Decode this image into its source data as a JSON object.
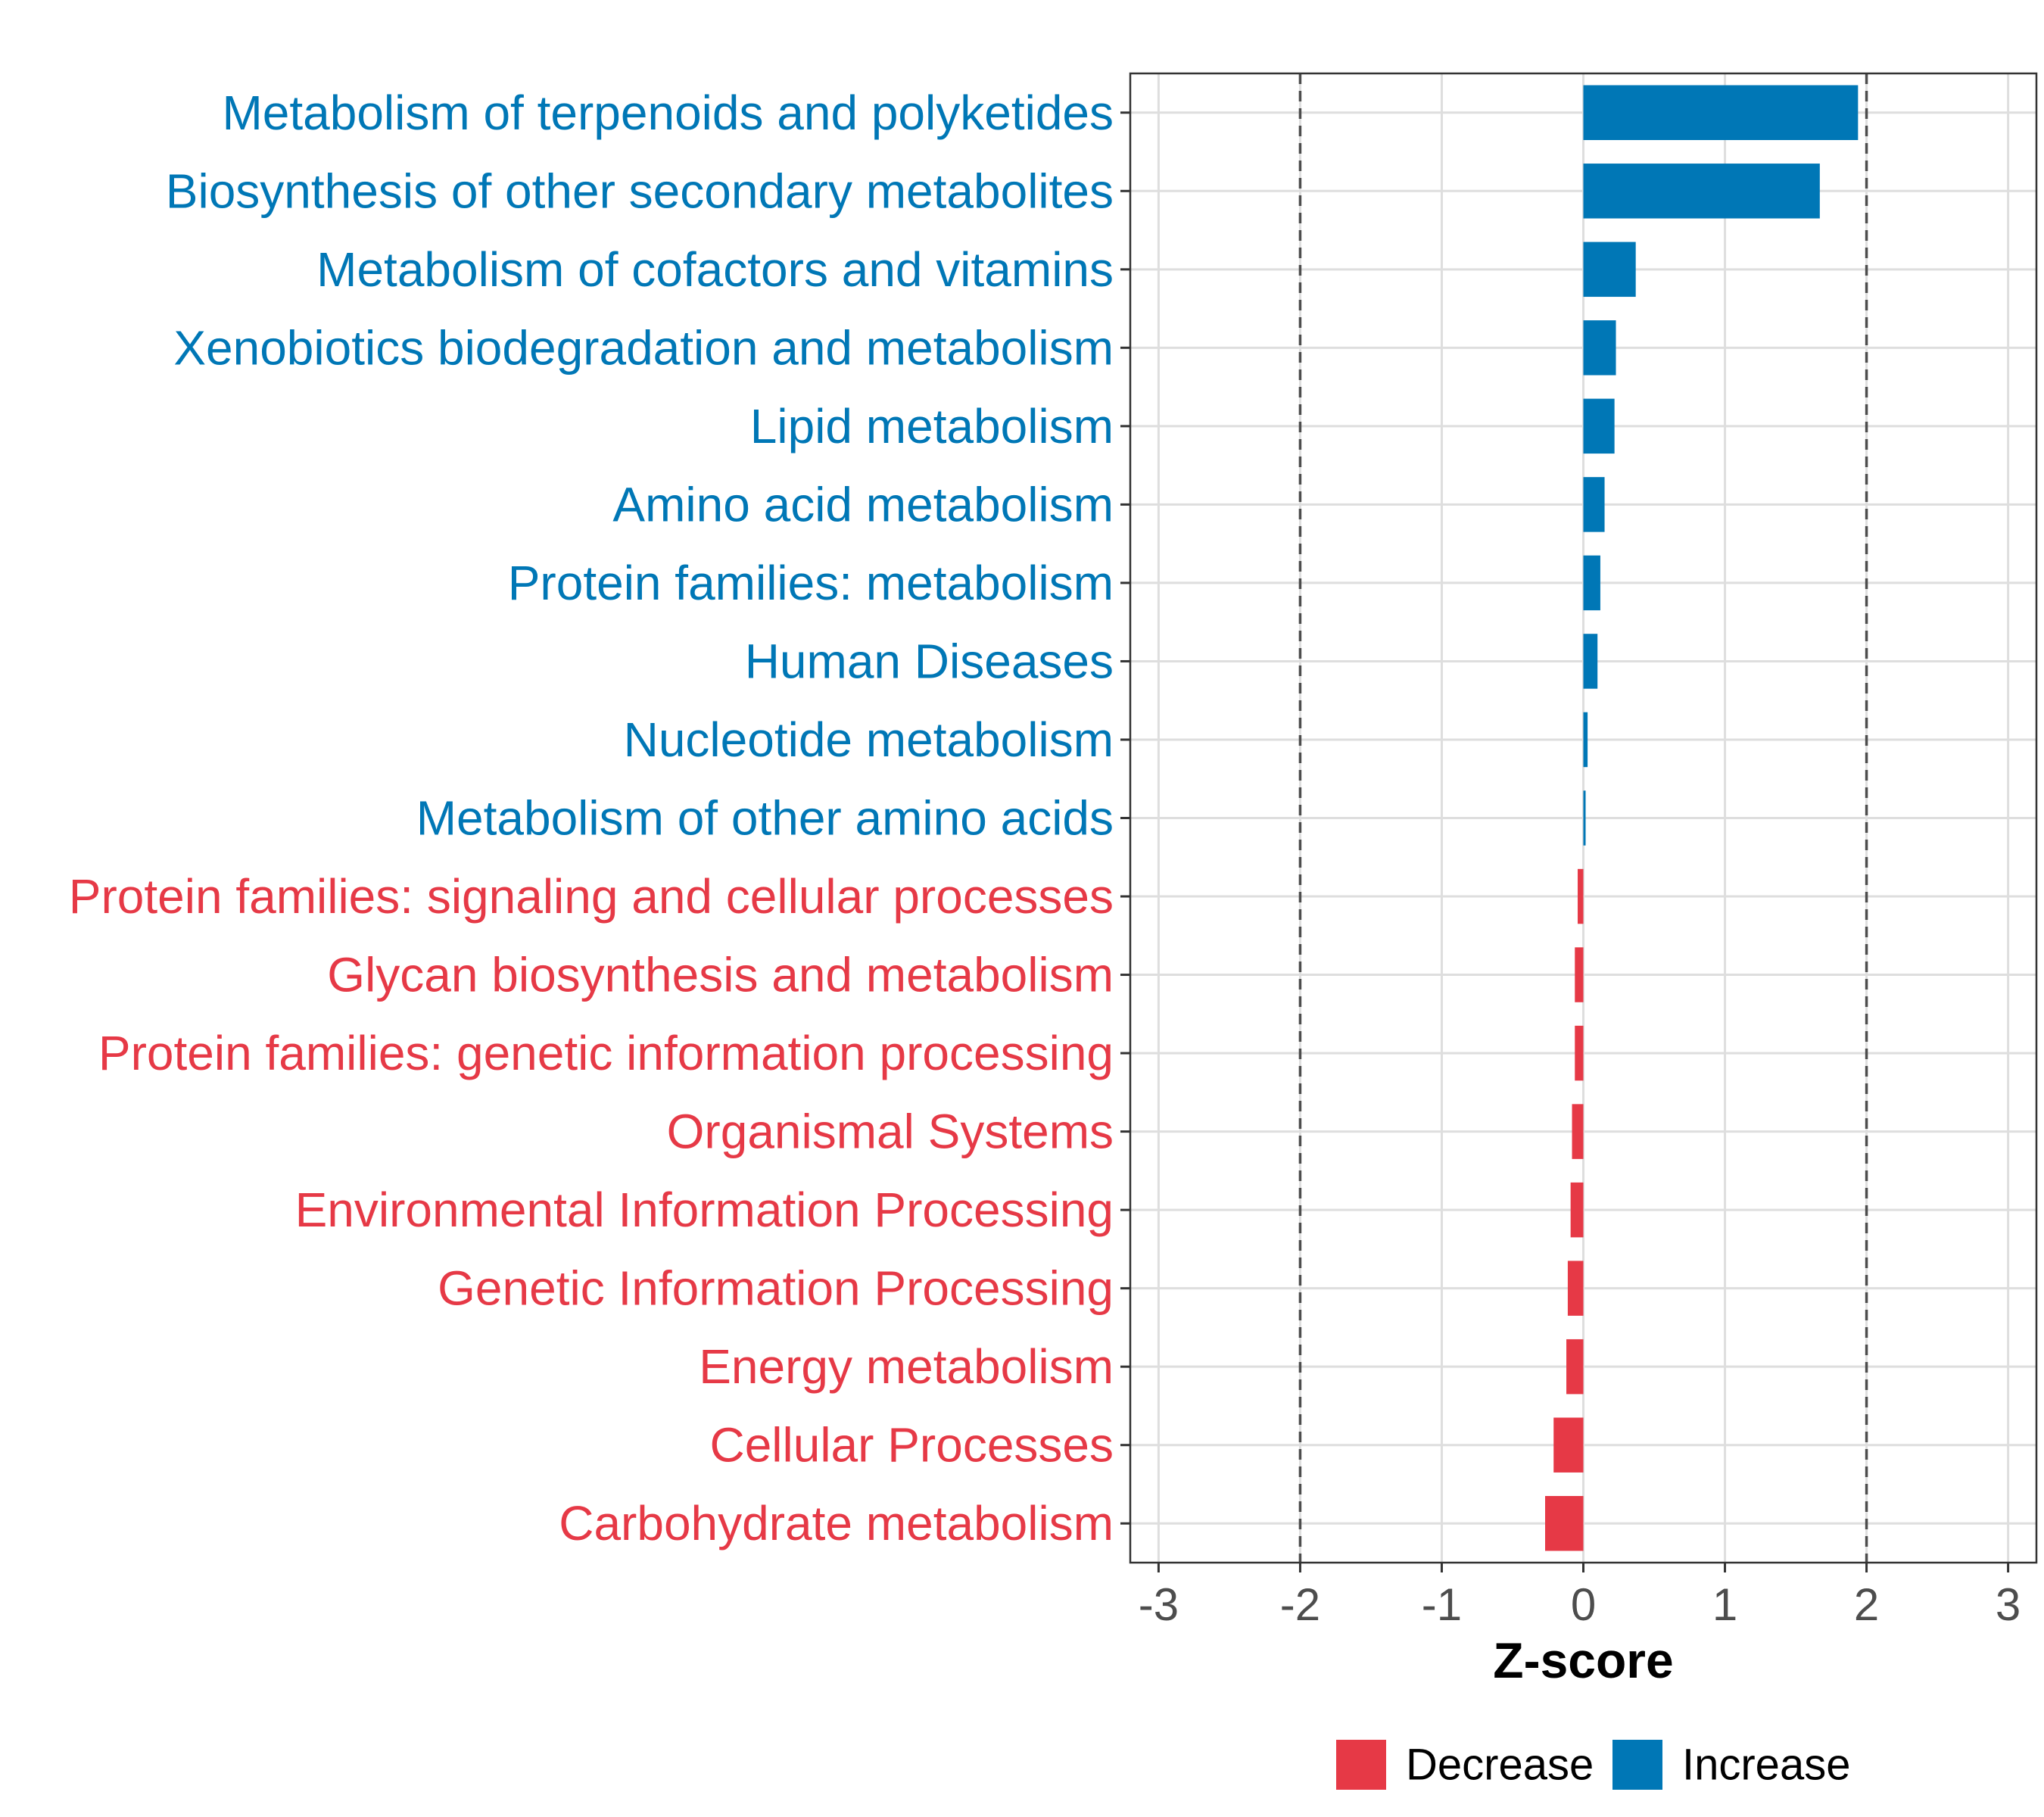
{
  "chart_data": {
    "type": "bar",
    "orientation": "horizontal",
    "categories": [
      "Metabolism of terpenoids and polyketides",
      "Biosynthesis of other secondary metabolites",
      "Metabolism of cofactors and vitamins",
      "Xenobiotics biodegradation and metabolism",
      "Lipid metabolism",
      "Amino acid metabolism",
      "Protein families: metabolism",
      "Human Diseases",
      "Nucleotide metabolism",
      "Metabolism of other amino acids",
      "Protein families: signaling and cellular processes",
      "Glycan biosynthesis and metabolism",
      "Protein families: genetic information processing",
      "Organismal Systems",
      "Environmental Information Processing",
      "Genetic Information Processing",
      "Energy metabolism",
      "Cellular Processes",
      "Carbohydrate metabolism"
    ],
    "values": [
      1.94,
      1.67,
      0.37,
      0.23,
      0.22,
      0.15,
      0.12,
      0.1,
      0.03,
      0.01,
      -0.04,
      -0.06,
      -0.06,
      -0.08,
      -0.09,
      -0.11,
      -0.12,
      -0.21,
      -0.27
    ],
    "groups": [
      "Increase",
      "Increase",
      "Increase",
      "Increase",
      "Increase",
      "Increase",
      "Increase",
      "Increase",
      "Increase",
      "Increase",
      "Decrease",
      "Decrease",
      "Decrease",
      "Decrease",
      "Decrease",
      "Decrease",
      "Decrease",
      "Decrease",
      "Decrease"
    ],
    "xlabel": "Z-score",
    "ylabel": "",
    "xlim": [
      -3.2,
      3.2
    ],
    "xticks": [
      -3,
      -2,
      -1,
      0,
      1,
      2,
      3
    ],
    "xtick_labels": [
      "-3",
      "-2",
      "-1",
      "0",
      "1",
      "2",
      "3"
    ],
    "reference_lines": [
      -2,
      2
    ],
    "grid": true,
    "legend": {
      "position": "bottom",
      "entries": [
        {
          "label": "Decrease",
          "color": "#e63946"
        },
        {
          "label": "Increase",
          "color": "#0077b6"
        }
      ]
    },
    "colors": {
      "Increase": "#0077b6",
      "Decrease": "#e63946"
    }
  }
}
